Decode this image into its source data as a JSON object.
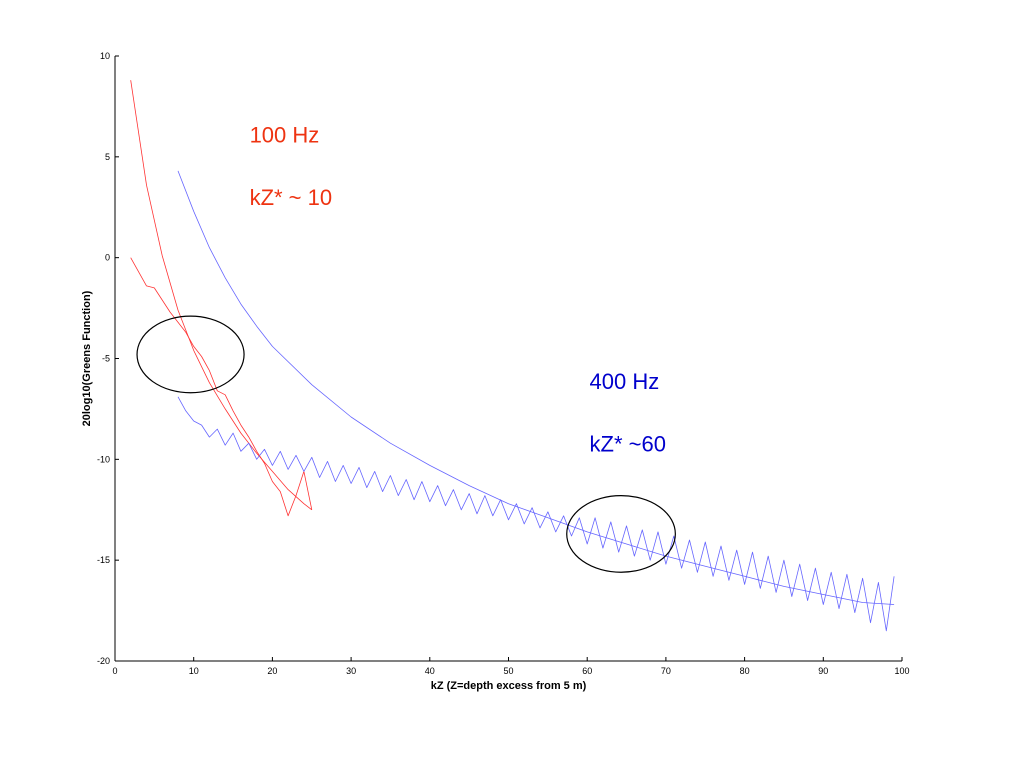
{
  "chart_data": {
    "type": "line",
    "title": "",
    "xlabel": "kZ (Z=depth excess from 5 m)",
    "ylabel": "20log10(Greens Function)",
    "xlim": [
      0,
      100
    ],
    "ylim": [
      -20,
      10
    ],
    "x_ticks": [
      0,
      10,
      20,
      30,
      40,
      50,
      60,
      70,
      80,
      90,
      100
    ],
    "y_ticks": [
      10,
      5,
      0,
      -5,
      -10,
      -15,
      -20
    ],
    "grid": false,
    "legend": "none",
    "series": [
      {
        "color": "#ff3333",
        "style": "smooth",
        "x": [
          2,
          4,
          6,
          8,
          10,
          12,
          14,
          16,
          18,
          20,
          22,
          24,
          25
        ],
        "y": [
          8.8,
          3.6,
          0.1,
          -2.6,
          -4.6,
          -6.2,
          -7.5,
          -8.7,
          -9.7,
          -10.6,
          -11.5,
          -12.2,
          -12.5
        ]
      },
      {
        "color": "#ff3333",
        "style": "oscillating",
        "x": [
          2,
          3,
          4,
          5,
          6,
          7,
          8,
          9,
          10,
          11,
          12,
          13,
          14,
          15,
          16,
          17,
          18,
          19,
          20,
          21,
          22,
          23,
          24,
          25
        ],
        "y": [
          0.0,
          -0.7,
          -1.4,
          -1.5,
          -2.1,
          -2.7,
          -3.2,
          -3.7,
          -4.4,
          -4.9,
          -5.6,
          -6.6,
          -6.8,
          -7.6,
          -8.3,
          -8.9,
          -9.6,
          -10.2,
          -11.1,
          -11.6,
          -12.8,
          -11.8,
          -10.6,
          -12.5
        ]
      },
      {
        "color": "#6666ff",
        "style": "smooth",
        "x": [
          8,
          10,
          12,
          14,
          16,
          18,
          20,
          25,
          30,
          35,
          40,
          45,
          50,
          55,
          60,
          65,
          70,
          75,
          80,
          85,
          90,
          95,
          99
        ],
        "y": [
          4.3,
          2.3,
          0.5,
          -1.0,
          -2.3,
          -3.4,
          -4.4,
          -6.3,
          -7.9,
          -9.2,
          -10.3,
          -11.3,
          -12.2,
          -12.9,
          -13.6,
          -14.2,
          -14.8,
          -15.3,
          -15.8,
          -16.3,
          -16.7,
          -17.1,
          -17.2
        ]
      },
      {
        "color": "#6666ff",
        "style": "oscillating",
        "x": [
          8,
          9,
          10,
          11,
          12,
          13,
          14,
          15,
          16,
          17,
          18,
          19,
          20,
          21,
          22,
          23,
          24,
          25,
          26,
          27,
          28,
          29,
          30,
          31,
          32,
          33,
          34,
          35,
          36,
          37,
          38,
          39,
          40,
          41,
          42,
          43,
          44,
          45,
          46,
          47,
          48,
          49,
          50,
          51,
          52,
          53,
          54,
          55,
          56,
          57,
          58,
          59,
          60,
          61,
          62,
          63,
          64,
          65,
          66,
          67,
          68,
          69,
          70,
          71,
          72,
          73,
          74,
          75,
          76,
          77,
          78,
          79,
          80,
          81,
          82,
          83,
          84,
          85,
          86,
          87,
          88,
          89,
          90,
          91,
          92,
          93,
          94,
          95,
          96,
          97,
          98,
          99
        ],
        "y": [
          -6.9,
          -7.6,
          -8.1,
          -8.3,
          -8.9,
          -8.5,
          -9.3,
          -8.7,
          -9.6,
          -9.2,
          -10.0,
          -9.5,
          -10.3,
          -9.6,
          -10.5,
          -9.8,
          -10.6,
          -9.9,
          -10.9,
          -10.1,
          -11.1,
          -10.3,
          -11.2,
          -10.4,
          -11.4,
          -10.6,
          -11.6,
          -10.8,
          -11.8,
          -11.0,
          -12.0,
          -11.1,
          -12.1,
          -11.3,
          -12.3,
          -11.5,
          -12.5,
          -11.7,
          -12.7,
          -11.8,
          -12.8,
          -12.0,
          -13.0,
          -12.2,
          -13.2,
          -12.4,
          -13.4,
          -12.6,
          -13.6,
          -12.8,
          -13.8,
          -12.9,
          -14.2,
          -12.9,
          -14.4,
          -13.1,
          -14.6,
          -13.3,
          -14.8,
          -13.5,
          -15.0,
          -13.6,
          -15.2,
          -13.8,
          -15.4,
          -14.0,
          -15.6,
          -14.1,
          -15.8,
          -14.3,
          -16.0,
          -14.5,
          -16.2,
          -14.6,
          -16.4,
          -14.8,
          -16.6,
          -15.0,
          -16.8,
          -15.2,
          -17.0,
          -15.4,
          -17.2,
          -15.6,
          -17.4,
          -15.7,
          -17.6,
          -15.9,
          -18.1,
          -16.1,
          -18.5,
          -15.8
        ]
      }
    ],
    "annotations": [
      {
        "text": "100 Hz",
        "x": 17.1,
        "y": 5.7,
        "color": "#ee3311"
      },
      {
        "text": "kZ* ~ 10",
        "x": 17.1,
        "y": 2.6,
        "color": "#ee3311"
      },
      {
        "text": "400 Hz",
        "x": 60.3,
        "y": -6.5,
        "color": "#0000cc"
      },
      {
        "text": "kZ* ~60",
        "x": 60.3,
        "y": -9.6,
        "color": "#0000cc"
      }
    ],
    "highlight_circles": [
      {
        "center": [
          9.6,
          -4.8
        ],
        "x_radius": 6.8,
        "y_radius": 1.9,
        "color": "#000000"
      },
      {
        "center": [
          64.3,
          -13.7
        ],
        "x_radius": 6.9,
        "y_radius": 1.9,
        "color": "#000000"
      }
    ]
  }
}
